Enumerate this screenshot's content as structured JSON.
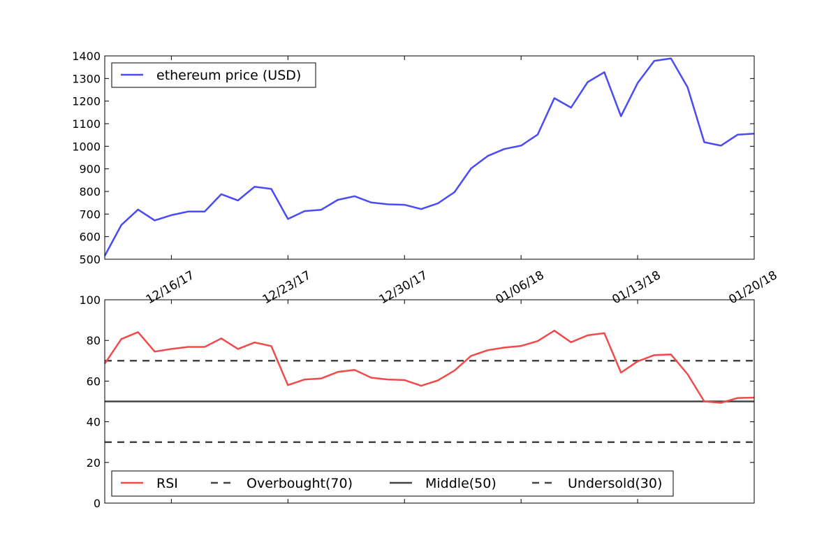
{
  "chart_data": [
    {
      "type": "line",
      "title": "",
      "xlabel": "",
      "ylabel": "",
      "ylim": [
        500,
        1400
      ],
      "y_ticks": [
        "500",
        "600",
        "700",
        "800",
        "900",
        "1000",
        "1100",
        "1200",
        "1300",
        "1400"
      ],
      "x_tick_labels": [
        "12/16/17",
        "12/23/17",
        "12/30/17",
        "01/06/18",
        "01/13/18",
        "01/20/18"
      ],
      "x_tick_dates": [
        "2017-12-16",
        "2017-12-23",
        "2017-12-30",
        "2018-01-06",
        "2018-01-13",
        "2018-01-20"
      ],
      "xlim": [
        "2017-12-12",
        "2018-01-20"
      ],
      "legend_position": "top-left",
      "grid": false,
      "series": [
        {
          "name": "ethereum price (USD)",
          "color": "#4a4af7",
          "x": [
            "2017-12-12",
            "2017-12-13",
            "2017-12-14",
            "2017-12-15",
            "2017-12-16",
            "2017-12-17",
            "2017-12-18",
            "2017-12-19",
            "2017-12-20",
            "2017-12-21",
            "2017-12-22",
            "2017-12-23",
            "2017-12-24",
            "2017-12-25",
            "2017-12-26",
            "2017-12-27",
            "2017-12-28",
            "2017-12-29",
            "2017-12-30",
            "2017-12-31",
            "2018-01-01",
            "2018-01-02",
            "2018-01-03",
            "2018-01-04",
            "2018-01-05",
            "2018-01-06",
            "2018-01-07",
            "2018-01-08",
            "2018-01-09",
            "2018-01-10",
            "2018-01-11",
            "2018-01-12",
            "2018-01-13",
            "2018-01-14",
            "2018-01-15",
            "2018-01-16",
            "2018-01-17",
            "2018-01-18",
            "2018-01-19",
            "2018-01-20"
          ],
          "values": [
            515,
            652,
            720,
            672,
            695,
            711,
            711,
            788,
            760,
            821,
            811,
            678,
            713,
            719,
            763,
            779,
            751,
            743,
            741,
            722,
            747,
            797,
            902,
            957,
            988,
            1003,
            1052,
            1213,
            1171,
            1284,
            1328,
            1133,
            1280,
            1378,
            1389,
            1261,
            1018,
            1003,
            1051,
            1056
          ]
        }
      ]
    },
    {
      "type": "line",
      "title": "",
      "xlabel": "",
      "ylabel": "",
      "ylim": [
        0,
        100
      ],
      "y_ticks": [
        "0",
        "20",
        "40",
        "60",
        "80",
        "100"
      ],
      "xlim": [
        "2017-12-12",
        "2018-01-20"
      ],
      "legend_position": "bottom",
      "grid": false,
      "series": [
        {
          "name": "RSI",
          "color": "#f24a4a",
          "style": "solid",
          "x": [
            "2017-12-12",
            "2017-12-13",
            "2017-12-14",
            "2017-12-15",
            "2017-12-16",
            "2017-12-17",
            "2017-12-18",
            "2017-12-19",
            "2017-12-20",
            "2017-12-21",
            "2017-12-22",
            "2017-12-23",
            "2017-12-24",
            "2017-12-25",
            "2017-12-26",
            "2017-12-27",
            "2017-12-28",
            "2017-12-29",
            "2017-12-30",
            "2017-12-31",
            "2018-01-01",
            "2018-01-02",
            "2018-01-03",
            "2018-01-04",
            "2018-01-05",
            "2018-01-06",
            "2018-01-07",
            "2018-01-08",
            "2018-01-09",
            "2018-01-10",
            "2018-01-11",
            "2018-01-12",
            "2018-01-13",
            "2018-01-14",
            "2018-01-15",
            "2018-01-16",
            "2018-01-17",
            "2018-01-18",
            "2018-01-19",
            "2018-01-20"
          ],
          "values": [
            68.6,
            80.7,
            84.1,
            74.5,
            75.8,
            76.8,
            76.8,
            81.0,
            75.8,
            79.0,
            77.2,
            58.0,
            60.8,
            61.3,
            64.5,
            65.5,
            61.7,
            60.8,
            60.5,
            57.7,
            60.3,
            65.2,
            72.4,
            75.2,
            76.5,
            77.3,
            79.7,
            84.8,
            79.1,
            82.5,
            83.6,
            64.2,
            69.7,
            72.8,
            73.1,
            63.4,
            50.0,
            49.3,
            51.7,
            51.9
          ]
        },
        {
          "name": "Overbought(70)",
          "color": "#444444",
          "style": "dashed",
          "value": 70
        },
        {
          "name": "Middle(50)",
          "color": "#444444",
          "style": "solid",
          "value": 50
        },
        {
          "name": "Undersold(30)",
          "color": "#444444",
          "style": "dashed",
          "value": 30
        }
      ]
    }
  ]
}
